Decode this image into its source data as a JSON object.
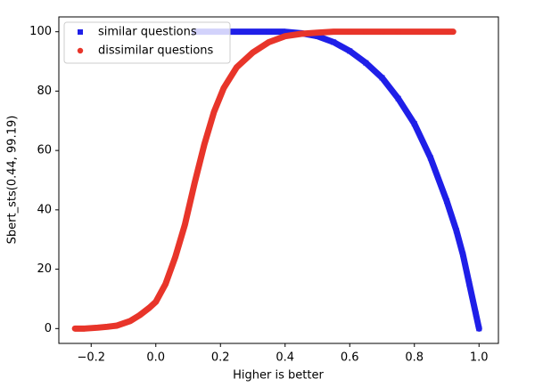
{
  "chart_data": {
    "type": "scatter",
    "xlabel": "Higher is better",
    "ylabel": "Sbert_sts(0.44, 99.19)",
    "xlim": [
      -0.3,
      1.06
    ],
    "ylim": [
      -5,
      105
    ],
    "xticks": [
      {
        "value": -0.2,
        "label": "−0.2"
      },
      {
        "value": 0,
        "label": "0.0"
      },
      0.2,
      0.4,
      0.6,
      0.8,
      {
        "value": 1,
        "label": "1.0"
      }
    ],
    "yticks": [
      0,
      20,
      40,
      60,
      80,
      100
    ],
    "legend": "upper left",
    "series": [
      {
        "name": "similar questions",
        "color": "#1f1fe8",
        "marker": "square",
        "x": [
          0.12,
          0.16,
          0.2,
          0.25,
          0.3,
          0.35,
          0.4,
          0.45,
          0.5,
          0.55,
          0.6,
          0.65,
          0.7,
          0.75,
          0.8,
          0.85,
          0.9,
          0.93,
          0.95,
          0.97,
          0.99,
          1.0
        ],
        "values": [
          100,
          100,
          100,
          100,
          100,
          100,
          100,
          99.5,
          98.5,
          96.5,
          93.5,
          89.5,
          84.5,
          77.5,
          69,
          57.5,
          43,
          33,
          25,
          15,
          5,
          0
        ]
      },
      {
        "name": "dissimilar questions",
        "color": "#e8352a",
        "marker": "circle",
        "x": [
          -0.25,
          -0.22,
          -0.18,
          -0.15,
          -0.12,
          -0.08,
          -0.05,
          -0.02,
          0.0,
          0.03,
          0.06,
          0.09,
          0.12,
          0.15,
          0.18,
          0.21,
          0.25,
          0.3,
          0.35,
          0.4,
          0.45,
          0.5,
          0.55,
          0.6,
          0.65,
          0.7,
          0.75,
          0.82,
          0.91,
          0.92
        ],
        "values": [
          0,
          0,
          0.3,
          0.6,
          1,
          2.5,
          4.5,
          7,
          9,
          15,
          24,
          35,
          49,
          62,
          73,
          81,
          88,
          93,
          96.5,
          98.5,
          99.3,
          99.7,
          100,
          100,
          100,
          100,
          100,
          100,
          100,
          100
        ]
      }
    ]
  }
}
